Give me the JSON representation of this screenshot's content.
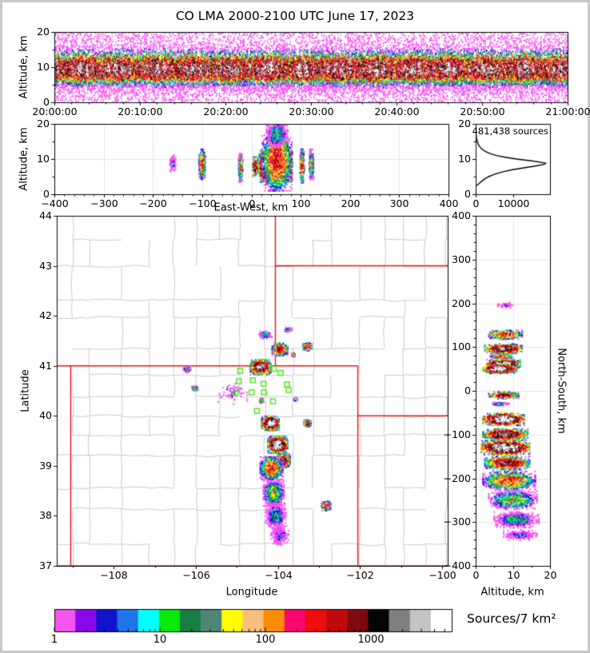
{
  "title": "CO LMA 2000-2100 UTC June 17, 2023",
  "colors": {
    "state_border": "#EE1111",
    "county": "#C9C9C9",
    "grid": "#E4E4E4",
    "station": "#55E522",
    "frame": "#000000",
    "background": "#FFFFFF",
    "page_border": "#C8C8C8",
    "histogram_line": "#000000"
  },
  "panels": {
    "time_height": {
      "ylabel": "Altitude, km",
      "ylim": [
        0,
        20
      ],
      "ytick_values": [
        0,
        10,
        20
      ],
      "ytick_labels": [
        "0",
        "10",
        "20"
      ],
      "xlim_minutes": [
        0,
        60
      ],
      "xtick_minutes": [
        0,
        10,
        20,
        30,
        40,
        50,
        60
      ],
      "xtick_labels": [
        "20:00:00",
        "20:10:00",
        "20:20:00",
        "20:30:00",
        "20:40:00",
        "20:50:00",
        "21:00:00"
      ]
    },
    "ew_cross_section": {
      "ylabel": "Altitude, km",
      "xlabel": "East-West, km",
      "ylim": [
        0,
        20
      ],
      "xlim": [
        -400,
        400
      ],
      "xtick_values": [
        -400,
        -300,
        -200,
        -100,
        0,
        100,
        200,
        300,
        400
      ],
      "xtick_labels": [
        "−400",
        "−300",
        "−200",
        "−100",
        "0",
        "100",
        "200",
        "300",
        "400"
      ],
      "ytick_values": [
        0,
        10,
        20
      ],
      "ytick_labels": [
        "0",
        "10",
        "20"
      ]
    },
    "altitude_histogram": {
      "annotation": "481,438 sources",
      "xlim": [
        0,
        20000
      ],
      "xtick_values": [
        0,
        10000
      ],
      "xtick_labels": [
        "0",
        "10000"
      ],
      "ylim": [
        0,
        20
      ],
      "ytick_values": [
        0,
        10,
        20
      ],
      "ytick_labels": [
        "0",
        "10",
        "20"
      ]
    },
    "plan_view": {
      "xlabel": "Longitude",
      "ylabel": "Latitude",
      "xlim": [
        -109.39,
        -99.86
      ],
      "ylim": [
        37,
        44
      ],
      "xtick_values": [
        -108,
        -106,
        -104,
        -102,
        -100
      ],
      "xtick_labels": [
        "−108",
        "−106",
        "−104",
        "−102",
        "−100"
      ],
      "xminor_values": [
        -109,
        -107,
        -105,
        -103,
        -101
      ],
      "ytick_values": [
        37,
        38,
        39,
        40,
        41,
        42,
        43,
        44
      ],
      "ytick_labels": [
        "37",
        "38",
        "39",
        "40",
        "41",
        "42",
        "43",
        "44"
      ]
    },
    "ns_cross_section": {
      "xlabel": "Altitude, km",
      "right_label": "North-South, km",
      "xlim": [
        0,
        20
      ],
      "ylim": [
        -400,
        400
      ],
      "xtick_values": [
        0,
        10,
        20
      ],
      "xtick_labels": [
        "0",
        "10",
        "20"
      ],
      "ytick_values": [
        400,
        300,
        200,
        100,
        0,
        -100,
        -200,
        -300,
        -400
      ],
      "ytick_labels": [
        "400",
        "300",
        "200",
        "100",
        "0",
        "−100",
        "−200",
        "−300",
        "−400"
      ]
    }
  },
  "colorbar": {
    "label": "Sources/7 km²",
    "tick_values": [
      1,
      10,
      100,
      1000
    ],
    "tick_labels": [
      "1",
      "10",
      "100",
      "1000"
    ],
    "minor_ticks": [
      2,
      3,
      4,
      5,
      6,
      7,
      8,
      9,
      20,
      30,
      40,
      50,
      60,
      70,
      80,
      90,
      200,
      300,
      400,
      500,
      600,
      700,
      800,
      900,
      2000,
      3000,
      4000,
      5000
    ],
    "log_decades": 3.765,
    "scale": "log",
    "colors": [
      "#F556EF",
      "#8908E9",
      "#1313CE",
      "#2173E8",
      "#00FFFF",
      "#0BE80B",
      "#177F44",
      "#4F8577",
      "#FEFE00",
      "#F7BE80",
      "#FB8B06",
      "#F8076F",
      "#EF0D0D",
      "#C10B0B",
      "#7E0A10",
      "#050505",
      "#7F7F7F",
      "#C3C3C3",
      "#FFFFFF"
    ]
  },
  "chart_data": [
    {
      "id": "time_height",
      "type": "density-scatter",
      "x_range": [
        "20:00:00",
        "21:00:00"
      ],
      "y_range_km": [
        0,
        20
      ],
      "band_center_km": 9.2,
      "band_sd_up_km": 1.5,
      "band_sd_down_km": 1.2,
      "peak_sources": 1200,
      "n_points": 40000
    },
    {
      "id": "ew_cross_section",
      "type": "density-scatter",
      "blobs": [
        {
          "ew": -160,
          "alt": 9,
          "w_ew": 14,
          "w_alt": 5,
          "peak": 3,
          "n": 100
        },
        {
          "ew": -100,
          "alt": 8.5,
          "w_ew": 13,
          "w_alt": 8.5,
          "peak": 260,
          "n": 850
        },
        {
          "ew": -22,
          "alt": 7.5,
          "w_ew": 8,
          "w_alt": 8,
          "peak": 130,
          "n": 520
        },
        {
          "ew": 8,
          "alt": 7.8,
          "w_ew": 11,
          "w_alt": 5.5,
          "peak": 900,
          "n": 420
        },
        {
          "ew": 28,
          "alt": 8,
          "w_ew": 24,
          "w_alt": 9,
          "peak": 5500,
          "n": 2600
        },
        {
          "ew": 70,
          "alt": 8.5,
          "w_ew": 26,
          "w_alt": 10,
          "peak": 5500,
          "n": 2800
        },
        {
          "ew": 52,
          "alt": 9.5,
          "w_ew": 60,
          "w_alt": 17,
          "peak": 320,
          "n": 3200
        },
        {
          "ew": 52,
          "alt": 17,
          "w_ew": 42,
          "w_alt": 7,
          "peak": 18,
          "n": 900
        },
        {
          "ew": 103,
          "alt": 8,
          "w_ew": 8,
          "w_alt": 9.5,
          "peak": 300,
          "n": 560
        },
        {
          "ew": 122,
          "alt": 8.5,
          "w_ew": 9,
          "w_alt": 8.5,
          "peak": 55,
          "n": 460
        }
      ]
    },
    {
      "id": "altitude_histogram",
      "type": "line",
      "total_sources": "481,438 sources",
      "alt_km": [
        2.3,
        2.6,
        3,
        3.5,
        4,
        4.5,
        5,
        5.5,
        6,
        6.5,
        7,
        7.5,
        8,
        8.5,
        8.8,
        9,
        9.5,
        10,
        10.5,
        11,
        11.5,
        12,
        12.5,
        13,
        13.5,
        14,
        14.5,
        15,
        15.5,
        16,
        17,
        18,
        19,
        20
      ],
      "counts": [
        0,
        400,
        900,
        1400,
        2000,
        2700,
        3500,
        4600,
        6000,
        7800,
        10000,
        13000,
        16000,
        18400,
        18800,
        18000,
        15000,
        11000,
        8000,
        5600,
        4000,
        2900,
        2100,
        1500,
        1100,
        800,
        600,
        430,
        300,
        200,
        90,
        30,
        8,
        2
      ]
    },
    {
      "id": "plan_view",
      "type": "density-scatter",
      "state_borders": [
        {
          "x": [
            -109.39,
            -102.05
          ],
          "y": [
            41,
            41
          ]
        },
        {
          "x": [
            -109.39,
            -99.86
          ],
          "y": [
            37,
            37
          ]
        },
        {
          "x": [
            -109.05,
            -109.05
          ],
          "y": [
            37,
            41
          ]
        },
        {
          "x": [
            -102.05,
            -102.05
          ],
          "y": [
            37,
            41
          ]
        },
        {
          "x": [
            -104.06,
            -104.06
          ],
          "y": [
            41,
            44
          ]
        },
        {
          "x": [
            -104.06,
            -99.86
          ],
          "y": [
            43,
            43
          ]
        },
        {
          "x": [
            -102.05,
            -99.86
          ],
          "y": [
            40,
            40
          ]
        }
      ],
      "stations": [
        [
          -104.92,
          40.9
        ],
        [
          -104.61,
          40.71
        ],
        [
          -104.95,
          40.69
        ],
        [
          -104.35,
          40.64
        ],
        [
          -103.78,
          40.63
        ],
        [
          -105.03,
          40.47
        ],
        [
          -104.64,
          40.47
        ],
        [
          -104.34,
          40.47
        ],
        [
          -103.74,
          40.52
        ],
        [
          -104.12,
          40.29
        ],
        [
          -104.51,
          40.1
        ],
        [
          -104.09,
          40.94
        ],
        [
          -103.93,
          40.86
        ]
      ],
      "blobs": [
        {
          "lon": -104.42,
          "lat": 40.97,
          "w_lon": 0.5,
          "w_lat": 0.3,
          "peak": 2500,
          "n": 1600
        },
        {
          "lon": -103.95,
          "lat": 41.33,
          "w_lon": 0.38,
          "w_lat": 0.25,
          "peak": 600,
          "n": 800
        },
        {
          "lon": -103.28,
          "lat": 41.38,
          "w_lon": 0.22,
          "w_lat": 0.15,
          "peak": 500,
          "n": 350
        },
        {
          "lon": -103.62,
          "lat": 41.22,
          "w_lon": 0.1,
          "w_lat": 0.07,
          "peak": 200,
          "n": 90
        },
        {
          "lon": -104.3,
          "lat": 41.62,
          "w_lon": 0.3,
          "w_lat": 0.15,
          "peak": 15,
          "n": 150
        },
        {
          "lon": -103.75,
          "lat": 41.72,
          "w_lon": 0.2,
          "w_lat": 0.1,
          "peak": 10,
          "n": 80
        },
        {
          "lon": -106.2,
          "lat": 40.93,
          "w_lon": 0.22,
          "w_lat": 0.12,
          "peak": 12,
          "n": 90
        },
        {
          "lon": -106.02,
          "lat": 40.55,
          "w_lon": 0.14,
          "w_lat": 0.1,
          "peak": 80,
          "n": 110
        },
        {
          "lon": -105.1,
          "lat": 40.45,
          "w_lon": 0.7,
          "w_lat": 0.45,
          "peak": 2,
          "n": 70
        },
        {
          "lon": -104.4,
          "lat": 40.3,
          "w_lon": 0.12,
          "w_lat": 0.1,
          "peak": 50,
          "n": 80
        },
        {
          "lon": -103.57,
          "lat": 40.33,
          "w_lon": 0.1,
          "w_lat": 0.08,
          "peak": 40,
          "n": 60
        },
        {
          "lon": -104.18,
          "lat": 39.85,
          "w_lon": 0.42,
          "w_lat": 0.28,
          "peak": 5500,
          "n": 2300
        },
        {
          "lon": -104.0,
          "lat": 39.42,
          "w_lon": 0.48,
          "w_lat": 0.33,
          "peak": 5500,
          "n": 2600
        },
        {
          "lon": -103.87,
          "lat": 39.1,
          "w_lon": 0.34,
          "w_lat": 0.26,
          "peak": 1800,
          "n": 1300
        },
        {
          "lon": -104.15,
          "lat": 38.95,
          "w_lon": 0.55,
          "w_lat": 0.45,
          "peak": 280,
          "n": 1800
        },
        {
          "lon": -104.1,
          "lat": 38.45,
          "w_lon": 0.5,
          "w_lat": 0.5,
          "peak": 55,
          "n": 1400
        },
        {
          "lon": -104.05,
          "lat": 38.0,
          "w_lon": 0.48,
          "w_lat": 0.5,
          "peak": 12,
          "n": 900
        },
        {
          "lon": -103.95,
          "lat": 37.62,
          "w_lon": 0.42,
          "w_lat": 0.4,
          "peak": 3,
          "n": 350
        },
        {
          "lon": -103.28,
          "lat": 39.85,
          "w_lon": 0.17,
          "w_lat": 0.13,
          "peak": 700,
          "n": 320
        },
        {
          "lon": -102.82,
          "lat": 38.2,
          "w_lon": 0.22,
          "w_lat": 0.18,
          "peak": 350,
          "n": 420
        }
      ]
    },
    {
      "id": "ns_cross_section",
      "type": "density-scatter",
      "blobs": [
        {
          "ns": 195,
          "alt": 8,
          "w_ns": 16,
          "w_alt": 4,
          "peak": 2,
          "n": 60
        },
        {
          "ns": 128,
          "alt": 8,
          "w_ns": 20,
          "w_alt": 9,
          "peak": 350,
          "n": 700
        },
        {
          "ns": 96,
          "alt": 7.5,
          "w_ns": 22,
          "w_alt": 10,
          "peak": 2500,
          "n": 1100
        },
        {
          "ns": 78,
          "alt": 7,
          "w_ns": 10,
          "w_alt": 6,
          "peak": 250,
          "n": 350
        },
        {
          "ns": 62,
          "alt": 7.5,
          "w_ns": 18,
          "w_alt": 9,
          "peak": 5000,
          "n": 1100
        },
        {
          "ns": 50,
          "alt": 6.5,
          "w_ns": 20,
          "w_alt": 9,
          "peak": 5000,
          "n": 1200
        },
        {
          "ns": -10,
          "alt": 7.5,
          "w_ns": 16,
          "w_alt": 8,
          "peak": 600,
          "n": 450
        },
        {
          "ns": -30,
          "alt": 6.5,
          "w_ns": 8,
          "w_alt": 5,
          "peak": 15,
          "n": 120
        },
        {
          "ns": -65,
          "alt": 7.5,
          "w_ns": 28,
          "w_alt": 11,
          "peak": 5800,
          "n": 1600
        },
        {
          "ns": -100,
          "alt": 8,
          "w_ns": 26,
          "w_alt": 12,
          "peak": 2500,
          "n": 1300
        },
        {
          "ns": -130,
          "alt": 8,
          "w_ns": 32,
          "w_alt": 13,
          "peak": 5800,
          "n": 2000
        },
        {
          "ns": -165,
          "alt": 8.5,
          "w_ns": 30,
          "w_alt": 12,
          "peak": 1000,
          "n": 1200
        },
        {
          "ns": -205,
          "alt": 9,
          "w_ns": 42,
          "w_alt": 14,
          "peak": 220,
          "n": 1500
        },
        {
          "ns": -250,
          "alt": 10,
          "w_ns": 42,
          "w_alt": 13,
          "peak": 50,
          "n": 1200
        },
        {
          "ns": -295,
          "alt": 11,
          "w_ns": 36,
          "w_alt": 12,
          "peak": 12,
          "n": 800
        },
        {
          "ns": -330,
          "alt": 12,
          "w_ns": 22,
          "w_alt": 9,
          "peak": 3,
          "n": 300
        }
      ]
    }
  ]
}
